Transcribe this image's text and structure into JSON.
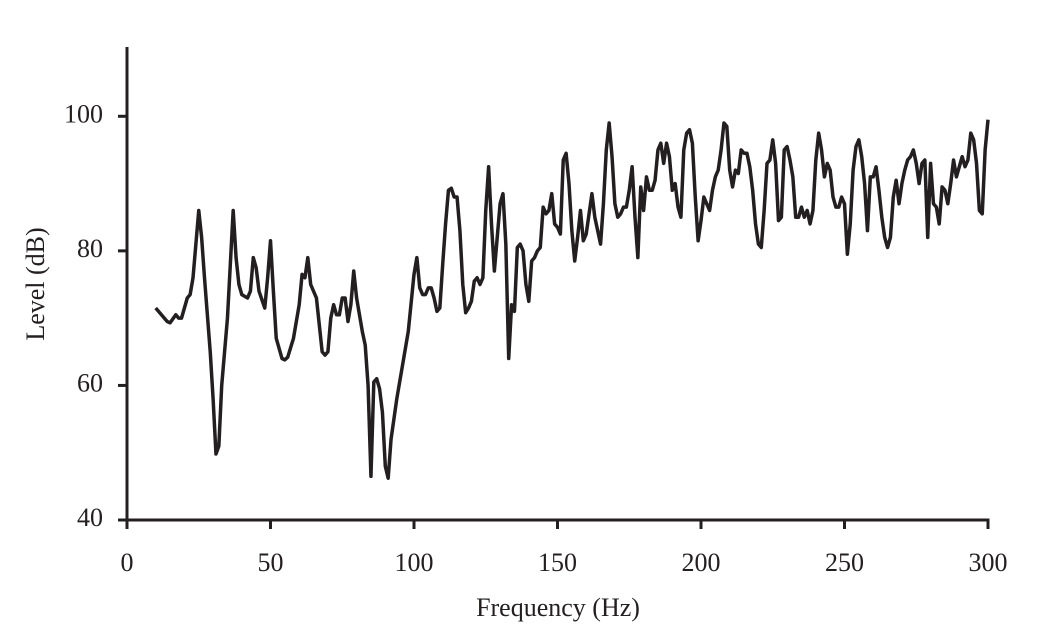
{
  "chart_data": {
    "type": "line",
    "x_label": "Frequency (Hz)",
    "y_label": "Level (dB)",
    "color": "#231f20",
    "x": [
      10,
      12,
      14,
      15,
      17,
      18,
      19,
      21,
      22,
      23,
      25,
      26,
      27,
      29,
      30,
      31,
      32,
      33,
      35,
      37,
      38,
      39,
      40,
      42,
      43,
      44,
      45,
      46,
      48,
      49,
      50,
      51,
      52,
      54,
      55,
      56,
      58,
      60,
      61,
      62,
      63,
      64,
      66,
      67,
      68,
      69,
      70,
      71,
      72,
      73,
      74,
      75,
      76,
      77,
      78,
      79,
      80,
      82,
      83,
      84,
      85,
      86,
      87,
      88,
      89,
      90,
      91,
      92,
      94,
      96,
      98,
      100,
      101,
      102,
      103,
      104,
      105,
      106,
      107,
      108,
      109,
      110,
      111,
      112,
      113,
      114,
      115,
      116,
      117,
      118,
      119,
      120,
      121,
      122,
      123,
      124,
      125,
      126,
      127,
      128,
      129,
      130,
      131,
      132,
      133,
      134,
      135,
      136,
      137,
      138,
      139,
      140,
      141,
      142,
      143,
      144,
      145,
      146,
      147,
      148,
      149,
      150,
      151,
      152,
      153,
      154,
      155,
      156,
      157,
      158,
      159,
      160,
      161,
      162,
      163,
      164,
      165,
      166,
      167,
      168,
      169,
      170,
      171,
      172,
      173,
      174,
      175,
      176,
      177,
      178,
      179,
      180,
      181,
      182,
      183,
      184,
      185,
      186,
      187,
      188,
      189,
      190,
      191,
      192,
      193,
      194,
      195,
      196,
      197,
      198,
      199,
      200,
      201,
      202,
      203,
      204,
      205,
      206,
      207,
      208,
      209,
      210,
      211,
      212,
      213,
      214,
      215,
      216,
      217,
      218,
      219,
      220,
      221,
      222,
      223,
      224,
      225,
      226,
      227,
      228,
      229,
      230,
      231,
      232,
      233,
      234,
      235,
      236,
      237,
      238,
      239,
      240,
      241,
      242,
      243,
      244,
      245,
      246,
      247,
      248,
      249,
      250,
      251,
      252,
      253,
      254,
      255,
      256,
      257,
      258,
      259,
      260,
      261,
      262,
      263,
      264,
      265,
      266,
      267,
      268,
      269,
      270,
      271,
      272,
      273,
      274,
      275,
      276,
      277,
      278,
      279,
      280,
      281,
      282,
      283,
      284,
      285,
      286,
      287,
      288,
      289,
      290,
      291,
      292,
      293,
      294,
      295,
      296,
      297,
      298,
      299,
      300
    ],
    "values": [
      71.5,
      70.5,
      69.5,
      69.3,
      70.5,
      70,
      70,
      73,
      73.5,
      76,
      86,
      82,
      76,
      65,
      58,
      49.8,
      51,
      60,
      70,
      86,
      79,
      75,
      73.5,
      73,
      74,
      79,
      77.5,
      74,
      71.5,
      76,
      81.5,
      74,
      67,
      64,
      63.8,
      64.2,
      67,
      72,
      76.5,
      76,
      79,
      75,
      73,
      69,
      65,
      64.5,
      65,
      70,
      72,
      70.5,
      70.5,
      73,
      73,
      69.5,
      72,
      77,
      73,
      68,
      66,
      60,
      46.5,
      60.5,
      61,
      59.5,
      56,
      48,
      46.2,
      52,
      58,
      63,
      68,
      76.5,
      79,
      74.5,
      73.5,
      73.5,
      74.5,
      74.5,
      73,
      71,
      71.5,
      78,
      84,
      89,
      89.3,
      88,
      88,
      83,
      75,
      70.8,
      71.5,
      72.5,
      75.5,
      76,
      75,
      76,
      86,
      92.5,
      84,
      77,
      82,
      87,
      88.5,
      81,
      64,
      72,
      71,
      80.5,
      81,
      80,
      75,
      72.5,
      78.5,
      79,
      80,
      80.5,
      86.5,
      85.5,
      86,
      88.5,
      84,
      83.5,
      82.5,
      93.5,
      94.5,
      90,
      83,
      78.5,
      82,
      86,
      81.5,
      82.5,
      85.5,
      88.5,
      85,
      83,
      81,
      87,
      95,
      99,
      94,
      87,
      85,
      85.5,
      86.5,
      86.5,
      89,
      92.5,
      85,
      79,
      89.5,
      86,
      91,
      89,
      89,
      90.5,
      95,
      96,
      93,
      96,
      94,
      89,
      90,
      86.5,
      85,
      95,
      97.5,
      98,
      96,
      88,
      81.5,
      84.5,
      88,
      87,
      86,
      89,
      91,
      92,
      95,
      99,
      98.5,
      92,
      89.5,
      92,
      91.5,
      95,
      94.5,
      94.5,
      92.5,
      89,
      84,
      81,
      80.5,
      86,
      93,
      93.5,
      96.5,
      93,
      84.5,
      85,
      95,
      95.5,
      93.5,
      91,
      85,
      85,
      86.5,
      85,
      86,
      84,
      86,
      93.5,
      97.5,
      95,
      91,
      93,
      92,
      88,
      86.5,
      86.5,
      88,
      87,
      79.5,
      84,
      92,
      95.5,
      96.5,
      94,
      90,
      83,
      91,
      91,
      92.5,
      89,
      85,
      82,
      80.5,
      82,
      88,
      90.5,
      87,
      90,
      92,
      93.5,
      94,
      95,
      93,
      90,
      93,
      93.5,
      82,
      93,
      87,
      86.5,
      84,
      89.5,
      89,
      87,
      90,
      93.5,
      91,
      92.5,
      94,
      92.5,
      93.5,
      97.5,
      96.5,
      93,
      86,
      85.5,
      95,
      99.5
    ],
    "xlim": [
      0,
      300
    ],
    "xticks": [
      0,
      50,
      100,
      150,
      200,
      250,
      300
    ],
    "ylim": [
      40,
      110
    ],
    "yticks": [
      40,
      60,
      80,
      100
    ]
  }
}
